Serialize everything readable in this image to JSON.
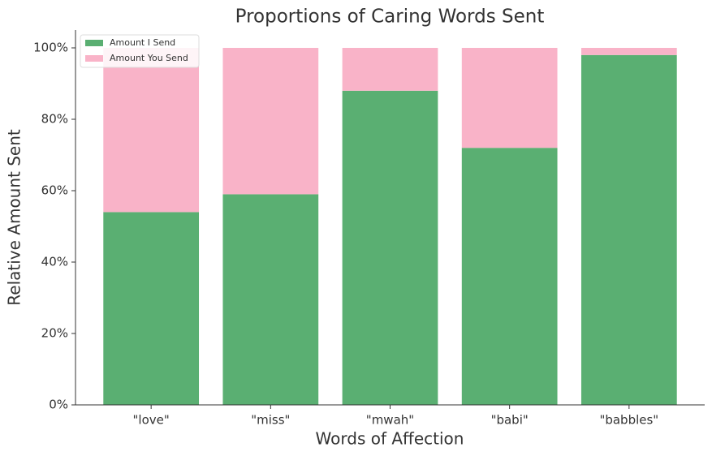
{
  "chart_data": {
    "type": "stacked_bar",
    "title": "Proportions of Caring Words Sent",
    "xlabel": "Words of Affection",
    "ylabel": "Relative Amount Sent",
    "categories": [
      "\"love\"",
      "\"miss\"",
      "\"mwah\"",
      "\"babi\"",
      "\"babbles\""
    ],
    "series": [
      {
        "name": "Amount I Send",
        "color": "#5aaf72",
        "values": [
          54,
          59,
          88,
          72,
          98
        ]
      },
      {
        "name": "Amount You Send",
        "color": "#f9b3c8",
        "values": [
          46,
          41,
          12,
          28,
          2
        ]
      }
    ],
    "ylim": [
      0,
      105
    ],
    "yticks": [
      {
        "value": 0,
        "label": "0%"
      },
      {
        "value": 20,
        "label": "20%"
      },
      {
        "value": 40,
        "label": "40%"
      },
      {
        "value": 60,
        "label": "60%"
      },
      {
        "value": 80,
        "label": "80%"
      },
      {
        "value": 100,
        "label": "100%"
      }
    ],
    "legend": "upper left",
    "grid": false
  }
}
